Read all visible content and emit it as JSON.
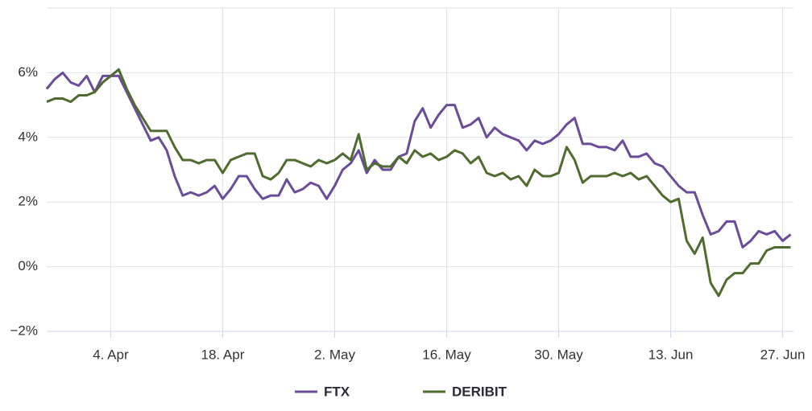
{
  "chart_data": {
    "type": "line",
    "categories": [
      null,
      null,
      null,
      null,
      null,
      null,
      null,
      null,
      "4. Apr",
      null,
      null,
      null,
      null,
      null,
      null,
      null,
      null,
      null,
      null,
      null,
      null,
      null,
      "18. Apr",
      null,
      null,
      null,
      null,
      null,
      null,
      null,
      null,
      null,
      null,
      null,
      null,
      null,
      "2. May",
      null,
      null,
      null,
      null,
      null,
      null,
      null,
      null,
      null,
      null,
      null,
      null,
      null,
      "16. May",
      null,
      null,
      null,
      null,
      null,
      null,
      null,
      null,
      null,
      null,
      null,
      null,
      null,
      "30. May",
      null,
      null,
      null,
      null,
      null,
      null,
      null,
      null,
      null,
      null,
      null,
      null,
      null,
      "13. Jun",
      null,
      null,
      null,
      null,
      null,
      null,
      null,
      null,
      null,
      null,
      null,
      null,
      null,
      "27. Jun",
      null
    ],
    "series": [
      {
        "name": "FTX",
        "color": "#6b4c9a",
        "values": [
          5.5,
          5.8,
          6.0,
          5.7,
          5.6,
          5.9,
          5.4,
          5.9,
          5.9,
          5.9,
          5.4,
          4.9,
          4.4,
          3.9,
          4.0,
          3.6,
          2.8,
          2.2,
          2.3,
          2.2,
          2.3,
          2.5,
          2.1,
          2.4,
          2.8,
          2.8,
          2.4,
          2.1,
          2.2,
          2.2,
          2.7,
          2.3,
          2.4,
          2.6,
          2.5,
          2.1,
          2.5,
          3.0,
          3.2,
          3.6,
          2.9,
          3.3,
          3.0,
          3.0,
          3.4,
          3.5,
          4.5,
          4.9,
          4.3,
          4.7,
          5.0,
          5.0,
          4.3,
          4.4,
          4.6,
          4.0,
          4.3,
          4.1,
          4.0,
          3.9,
          3.6,
          3.9,
          3.8,
          3.9,
          4.1,
          4.4,
          4.6,
          3.8,
          3.8,
          3.7,
          3.7,
          3.6,
          3.9,
          3.4,
          3.4,
          3.5,
          3.2,
          3.1,
          2.8,
          2.5,
          2.3,
          2.3,
          1.6,
          1.0,
          1.1,
          1.4,
          1.4,
          0.6,
          0.8,
          1.1,
          1.0,
          1.1,
          0.8,
          1.0
        ]
      },
      {
        "name": "DERIBIT",
        "color": "#4f6b2f",
        "values": [
          5.1,
          5.2,
          5.2,
          5.1,
          5.3,
          5.3,
          5.4,
          5.7,
          5.9,
          6.1,
          5.5,
          5.0,
          4.6,
          4.2,
          4.2,
          4.2,
          3.7,
          3.3,
          3.3,
          3.2,
          3.3,
          3.3,
          2.9,
          3.3,
          3.4,
          3.5,
          3.5,
          2.8,
          2.7,
          2.9,
          3.3,
          3.3,
          3.2,
          3.1,
          3.3,
          3.2,
          3.3,
          3.5,
          3.3,
          4.1,
          3.0,
          3.2,
          3.1,
          3.1,
          3.4,
          3.2,
          3.6,
          3.4,
          3.5,
          3.3,
          3.4,
          3.6,
          3.5,
          3.2,
          3.4,
          2.9,
          2.8,
          2.9,
          2.7,
          2.8,
          2.5,
          3.0,
          2.8,
          2.8,
          2.9,
          3.7,
          3.3,
          2.6,
          2.8,
          2.8,
          2.8,
          2.9,
          2.8,
          2.9,
          2.7,
          2.8,
          2.5,
          2.2,
          2.0,
          2.1,
          0.8,
          0.4,
          0.9,
          -0.5,
          -0.9,
          -0.4,
          -0.2,
          -0.2,
          0.1,
          0.1,
          0.5,
          0.6,
          0.6,
          0.6
        ]
      }
    ],
    "ylim": [
      -2,
      8
    ],
    "yticks": [
      {
        "value": -2,
        "label": "−2%"
      },
      {
        "value": 0,
        "label": "0%"
      },
      {
        "value": 2,
        "label": "2%"
      },
      {
        "value": 4,
        "label": "4%"
      },
      {
        "value": 6,
        "label": "6%"
      }
    ],
    "grid": true
  }
}
